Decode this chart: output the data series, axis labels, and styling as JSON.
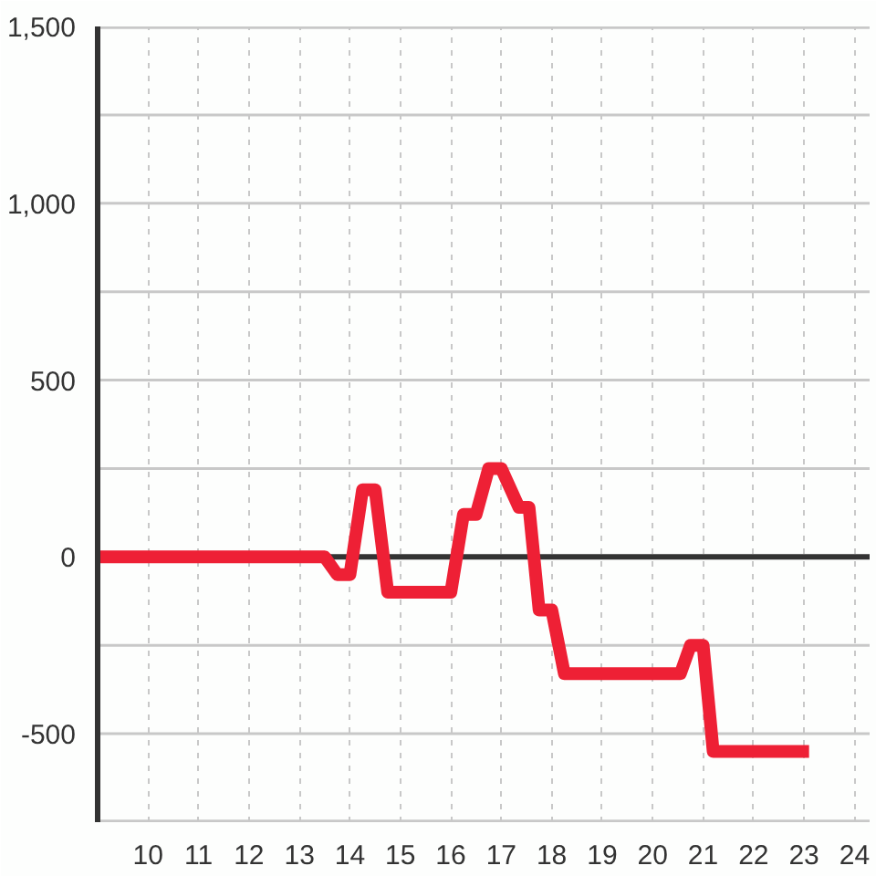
{
  "chart_data": {
    "type": "line",
    "x": [
      9,
      13.5,
      13.75,
      14.0,
      14.25,
      14.5,
      14.75,
      16.0,
      16.25,
      16.5,
      16.75,
      17.0,
      17.35,
      17.55,
      17.75,
      18.0,
      18.25,
      20.55,
      20.75,
      21.0,
      21.2,
      23.1
    ],
    "series": [
      {
        "color": "#ee2035",
        "values": [
          0,
          0,
          -50,
          -50,
          190,
          190,
          -100,
          -100,
          120,
          120,
          250,
          250,
          140,
          140,
          -150,
          -150,
          -330,
          -330,
          -250,
          -250,
          -550,
          -550
        ]
      }
    ],
    "xlim": [
      9,
      24.3
    ],
    "xticks": [
      10,
      11,
      12,
      13,
      14,
      15,
      16,
      17,
      18,
      19,
      20,
      21,
      22,
      23,
      24
    ],
    "ylim": [
      -750,
      1500
    ],
    "yticks": [
      {
        "value": -750,
        "label": null
      },
      {
        "value": -500,
        "label": "-500"
      },
      {
        "value": -250,
        "label": null
      },
      0,
      {
        "value": 250,
        "label": null
      },
      500,
      {
        "value": 750,
        "label": null
      },
      {
        "value": 1000,
        "label": "1,000"
      },
      {
        "value": 1250,
        "label": null
      },
      {
        "value": 1500,
        "label": "1,500"
      }
    ],
    "grid": true,
    "line_style": "solid",
    "ref_lines": [
      {
        "axis": "y",
        "value": 0,
        "color": "#333333"
      }
    ]
  }
}
